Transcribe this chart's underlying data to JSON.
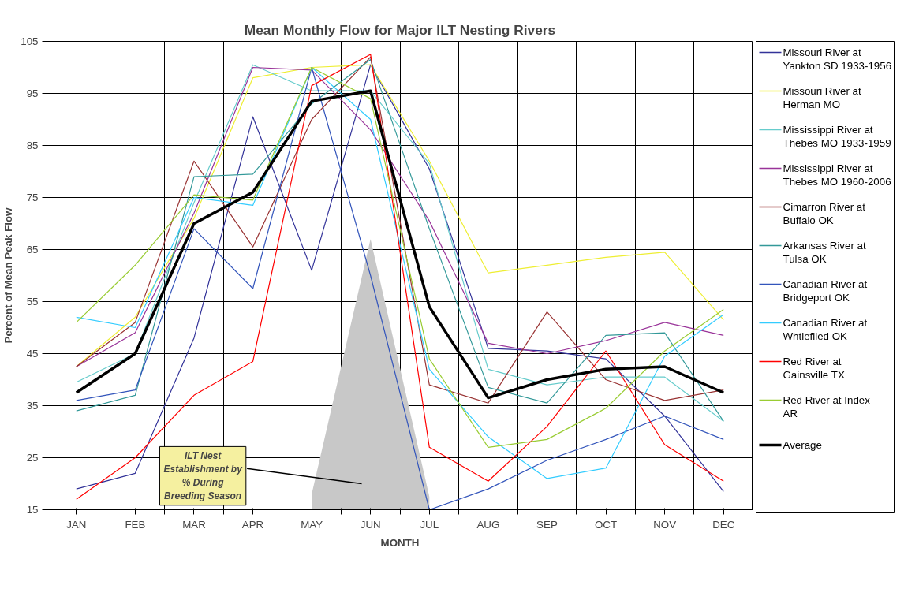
{
  "chart_data": {
    "type": "line",
    "title": "Mean Monthly Flow for Major ILT Nesting Rivers",
    "xlabel": "MONTH",
    "ylabel": "Percent of Mean Peak Flow",
    "categories": [
      "JAN",
      "FEB",
      "MAR",
      "APR",
      "MAY",
      "JUN",
      "JUL",
      "AUG",
      "SEP",
      "OCT",
      "NOV",
      "DEC"
    ],
    "ylim": [
      15,
      105
    ],
    "yticks": [
      15,
      25,
      35,
      45,
      55,
      65,
      75,
      85,
      95,
      105
    ],
    "grid": true,
    "legend": "right",
    "marker": "none",
    "line_style": "solid",
    "annotations": [
      "ILT Nest Establishment by % During Breeding Season"
    ],
    "series": [
      {
        "type": "area",
        "color": "#c8c8c8",
        "values": [
          null,
          null,
          null,
          null,
          18,
          67,
          17.5,
          null,
          null,
          null,
          null,
          null
        ]
      },
      {
        "name": "Missouri River at Yankton SD 1933-1956",
        "color": "#333399",
        "values": [
          19,
          22,
          48,
          90.5,
          61,
          100.5,
          80.5,
          46,
          45.5,
          44,
          33,
          18.5
        ]
      },
      {
        "name": "Missouri River at Herman MO",
        "color": "#eeee33",
        "values": [
          42.5,
          52,
          71,
          98,
          100,
          100.5,
          82,
          60.5,
          62,
          63.5,
          64.5,
          51.5
        ]
      },
      {
        "name": "Mississippi River at Thebes MO 1933-1959",
        "color": "#66cccc",
        "values": [
          39.5,
          45,
          74,
          100.5,
          95.5,
          95.5,
          81.5,
          42,
          39,
          40.5,
          40.5,
          32
        ]
      },
      {
        "name": "Mississippi River at Thebes MO 1960-2006",
        "color": "#993399",
        "values": [
          42.5,
          49,
          72,
          100,
          99.5,
          88,
          70.5,
          47,
          45,
          47.5,
          51,
          48.5
        ]
      },
      {
        "name": "Cimarron River at Buffalo OK",
        "color": "#993333",
        "values": [
          42.5,
          51,
          82,
          65.5,
          90,
          102,
          39,
          35.5,
          53,
          40,
          36,
          38
        ]
      },
      {
        "name": "Arkansas River at Tulsa OK",
        "color": "#339999",
        "values": [
          34,
          37,
          79,
          79.5,
          93,
          101.5,
          69,
          38.5,
          35.5,
          48.5,
          49,
          32
        ]
      },
      {
        "name": "Canadian River at Bridgeport OK",
        "color": "#3355bb",
        "values": [
          36,
          38,
          69,
          57.5,
          100,
          60,
          15,
          19,
          24.5,
          28.5,
          33,
          28.5
        ]
      },
      {
        "name": "Canadian River at Whtiefiled OK",
        "color": "#33ccff",
        "values": [
          52,
          50,
          75,
          73.5,
          100,
          90,
          42,
          29,
          21,
          23,
          44.5,
          52.5
        ]
      },
      {
        "name": "Red River at Gainsville TX",
        "color": "#ff0000",
        "values": [
          17,
          25,
          37,
          43.5,
          96.5,
          102.5,
          27,
          20.5,
          31,
          45.5,
          27.5,
          20.5
        ]
      },
      {
        "name": "Red River at Index AR",
        "color": "#99cc33",
        "values": [
          51,
          62,
          75.5,
          74.5,
          100,
          94,
          44,
          27,
          28.5,
          34.5,
          45.5,
          53.5
        ]
      },
      {
        "name": "Average",
        "color": "#000000",
        "values": [
          37.5,
          45,
          70,
          76,
          93.5,
          95.5,
          54,
          36.5,
          40,
          42,
          42.5,
          37.5
        ]
      }
    ]
  }
}
